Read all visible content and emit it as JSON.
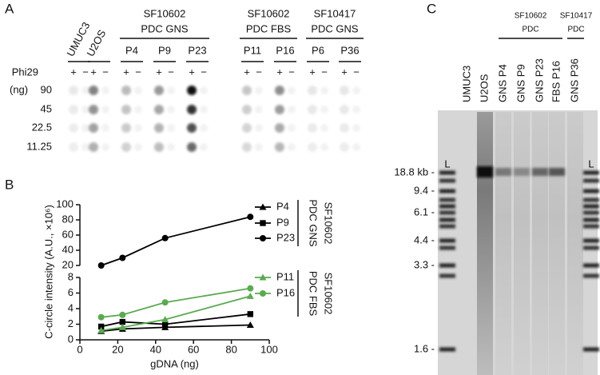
{
  "panel_labels": [
    "A",
    "B",
    "C"
  ],
  "panel_a": {
    "lanes": [
      "UMUC3",
      "U2OS"
    ],
    "groups": [
      {
        "label": [
          "SF10602",
          "PDC GNS"
        ],
        "samples": [
          "P4",
          "P9",
          "P23"
        ]
      },
      {
        "label": [
          "SF10602",
          "PDC FBS"
        ],
        "samples": [
          "P11",
          "P16"
        ]
      },
      {
        "label": [
          "SF10417",
          "PDC GNS"
        ],
        "samples": [
          "P6",
          "P36"
        ]
      }
    ],
    "enzyme": "Phi29",
    "signs": [
      "+",
      "−"
    ],
    "amount_unit": "(ng)",
    "amounts": [
      "90",
      "45",
      "22.5",
      "11.25"
    ]
  },
  "chart_data": {
    "type": "line",
    "ylabel": "C-circle intensity (A.U., ×10⁶)",
    "xlabel": "gDNA (ng)",
    "x": [
      11.25,
      22.5,
      45,
      90
    ],
    "xlim": [
      0,
      100
    ],
    "xticks": [
      0,
      20,
      40,
      60,
      80,
      100
    ],
    "ylim": [
      0,
      8
    ],
    "yticks": [
      0,
      2,
      4,
      6,
      8
    ],
    "upper_ylim": [
      20,
      100
    ],
    "upper_yticks": [
      20,
      40,
      60,
      80,
      100
    ],
    "series": [
      {
        "name": "P4",
        "color": "#000000",
        "marker": "triangle",
        "values": [
          1.1,
          1.4,
          1.6,
          1.9
        ]
      },
      {
        "name": "P9",
        "color": "#000000",
        "marker": "square",
        "values": [
          1.7,
          2.3,
          2.0,
          3.3
        ]
      },
      {
        "name": "P23",
        "color": "#000000",
        "marker": "circle",
        "axis": "upper",
        "values": [
          20,
          30,
          56,
          84
        ]
      },
      {
        "name": "P11",
        "color": "#5aaa50",
        "marker": "triangle",
        "values": [
          1.2,
          1.6,
          2.6,
          5.6
        ]
      },
      {
        "name": "P16",
        "color": "#5aaa50",
        "marker": "circle",
        "values": [
          2.9,
          3.2,
          4.8,
          6.6
        ]
      }
    ],
    "legend_groups": [
      {
        "label": [
          "SF10602",
          "PDC GNS"
        ],
        "series": [
          0,
          1,
          2
        ]
      },
      {
        "label": [
          "SF10602",
          "PDC FBS"
        ],
        "series": [
          3,
          4
        ]
      }
    ]
  },
  "panel_c": {
    "lanes": [
      "L",
      "UMUC3",
      "U2OS",
      "GNS P4",
      "GNS P9",
      "GNS P23",
      "FBS P16",
      "GNS P36",
      "L"
    ],
    "groups": [
      {
        "label": [
          "SF10602",
          "PDC"
        ]
      },
      {
        "label": [
          "SF10417",
          "PDC"
        ]
      }
    ],
    "markers": [
      "18.8 kb -",
      "9.4 -",
      "6.1 -",
      "4.4 -",
      "3.3 -",
      "1.6 -"
    ]
  }
}
